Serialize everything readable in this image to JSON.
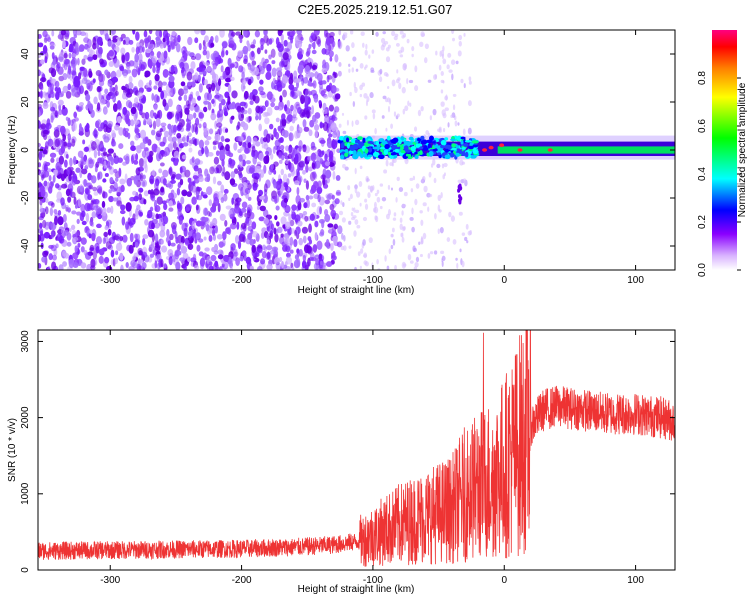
{
  "title": "C2E5.2025.219.12.51.G07",
  "chart_data": [
    {
      "type": "heatmap",
      "xlabel": "Height of straight line (km)",
      "ylabel": "Frequency (Hz)",
      "xlim": [
        -355,
        130
      ],
      "ylim": [
        -50,
        50
      ],
      "xticks": [
        -300,
        -200,
        -100,
        0,
        100
      ],
      "yticks": [
        -40,
        -20,
        0,
        20,
        40
      ],
      "colorbar": {
        "label": "Normalized spectral amplitude",
        "range": [
          0,
          1
        ],
        "ticks": [
          0.0,
          0.2,
          0.4,
          0.6,
          0.8
        ],
        "tick_labels": [
          "0.0",
          "0.2",
          "0.4",
          "0.6",
          "0.8"
        ],
        "colormap": [
          "#ffffff",
          "#8a00ff",
          "#0000ff",
          "#00ffff",
          "#00ff00",
          "#ffff00",
          "#ff8000",
          "#ff0000",
          "#ff0080"
        ]
      },
      "regions": [
        {
          "x_range": [
            -355,
            -125
          ],
          "description_color": "#7a1fff",
          "amplitude": 0.12
        },
        {
          "x_range": [
            -125,
            -25
          ],
          "amplitude": 0.05
        },
        {
          "x_range": [
            -125,
            130
          ],
          "y_range": [
            -3,
            5
          ],
          "amplitude": 0.45
        }
      ]
    },
    {
      "type": "line",
      "xlabel": "Height of straight line (km)",
      "ylabel": "SNR (10 * v/v)",
      "xlim": [
        -355,
        130
      ],
      "ylim": [
        0,
        3150
      ],
      "xticks": [
        -300,
        -200,
        -100,
        0,
        100
      ],
      "yticks": [
        0,
        1000,
        2000,
        3000
      ],
      "color": "#ee3333",
      "series": [
        {
          "x": [
            -355,
            -300,
            -250,
            -200,
            -160,
            -130,
            -110,
            -100,
            -80,
            -60,
            -40,
            -30,
            -20,
            -10,
            0,
            10,
            20,
            30,
            40,
            60,
            80,
            100,
            120,
            130
          ],
          "y": [
            250,
            260,
            270,
            280,
            300,
            330,
            380,
            450,
            600,
            700,
            800,
            1000,
            1100,
            1200,
            1350,
            1600,
            1900,
            2100,
            2150,
            2100,
            2050,
            2050,
            2000,
            1950
          ]
        }
      ]
    }
  ]
}
